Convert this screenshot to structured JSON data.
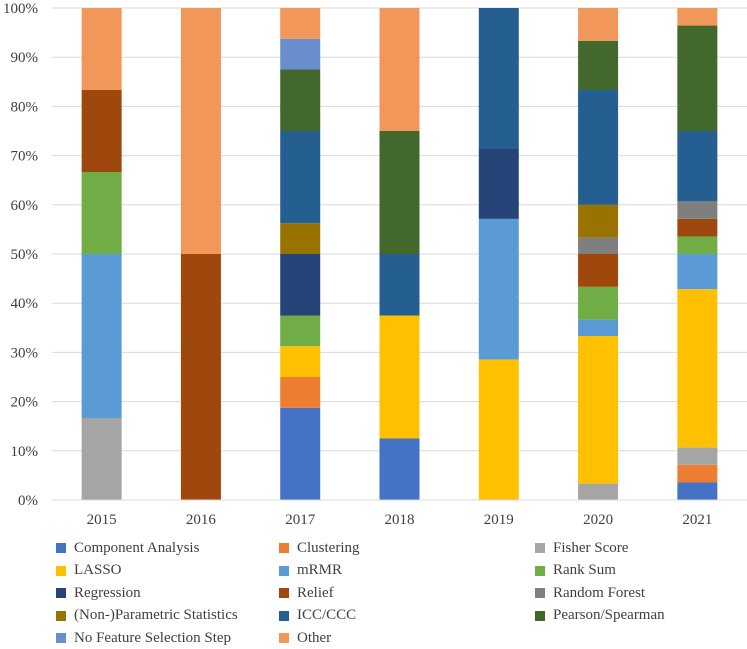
{
  "chart_data": {
    "type": "bar",
    "stacked": true,
    "normalized": true,
    "categories": [
      "2015",
      "2016",
      "2017",
      "2018",
      "2019",
      "2020",
      "2021"
    ],
    "ylim": [
      0,
      100
    ],
    "yticks": [
      "0%",
      "10%",
      "20%",
      "30%",
      "40%",
      "50%",
      "60%",
      "70%",
      "80%",
      "90%",
      "100%"
    ],
    "legend_position": "bottom",
    "series": [
      {
        "name": "Component Analysis",
        "color": "#4472C4",
        "values": [
          0,
          0,
          18.75,
          12.5,
          0,
          0,
          3.57
        ]
      },
      {
        "name": "Clustering",
        "color": "#ED7D31",
        "values": [
          0,
          0,
          6.25,
          0,
          0,
          0,
          3.57
        ]
      },
      {
        "name": "Fisher Score",
        "color": "#A5A5A5",
        "values": [
          16.67,
          0,
          0,
          0,
          0,
          3.33,
          3.57
        ]
      },
      {
        "name": "LASSO",
        "color": "#FFC000",
        "values": [
          0,
          0,
          6.25,
          25,
          28.57,
          30,
          32.14
        ]
      },
      {
        "name": "mRMR",
        "color": "#5B9BD5",
        "values": [
          33.33,
          0,
          0,
          0,
          28.57,
          3.33,
          7.14
        ]
      },
      {
        "name": "Rank Sum",
        "color": "#70AD47",
        "values": [
          16.67,
          0,
          6.25,
          0,
          0,
          6.67,
          3.57
        ]
      },
      {
        "name": "Regression",
        "color": "#264478",
        "values": [
          0,
          0,
          12.5,
          0,
          14.29,
          0,
          0
        ]
      },
      {
        "name": "Relief",
        "color": "#9E480E",
        "values": [
          16.67,
          50,
          0,
          0,
          0,
          6.67,
          3.57
        ]
      },
      {
        "name": "Random Forest",
        "color": "#7F7F7F",
        "values": [
          0,
          0,
          0,
          0,
          0,
          3.33,
          3.57
        ]
      },
      {
        "name": "(Non-)Parametric Statistics",
        "color": "#997300",
        "values": [
          0,
          0,
          6.25,
          0,
          0,
          6.67,
          0
        ]
      },
      {
        "name": "ICC/CCC",
        "color": "#255E91",
        "values": [
          0,
          0,
          18.75,
          12.5,
          28.57,
          23.33,
          14.29
        ]
      },
      {
        "name": "Pearson/Spearman",
        "color": "#43682B",
        "values": [
          0,
          0,
          12.5,
          25,
          0,
          10,
          21.43
        ]
      },
      {
        "name": "No Feature Selection Step",
        "color": "#698ED0",
        "values": [
          0,
          0,
          6.25,
          0,
          0,
          0,
          0
        ]
      },
      {
        "name": "Other",
        "color": "#F1975A",
        "values": [
          16.67,
          50,
          6.25,
          25,
          0,
          6.67,
          3.57
        ]
      }
    ]
  }
}
